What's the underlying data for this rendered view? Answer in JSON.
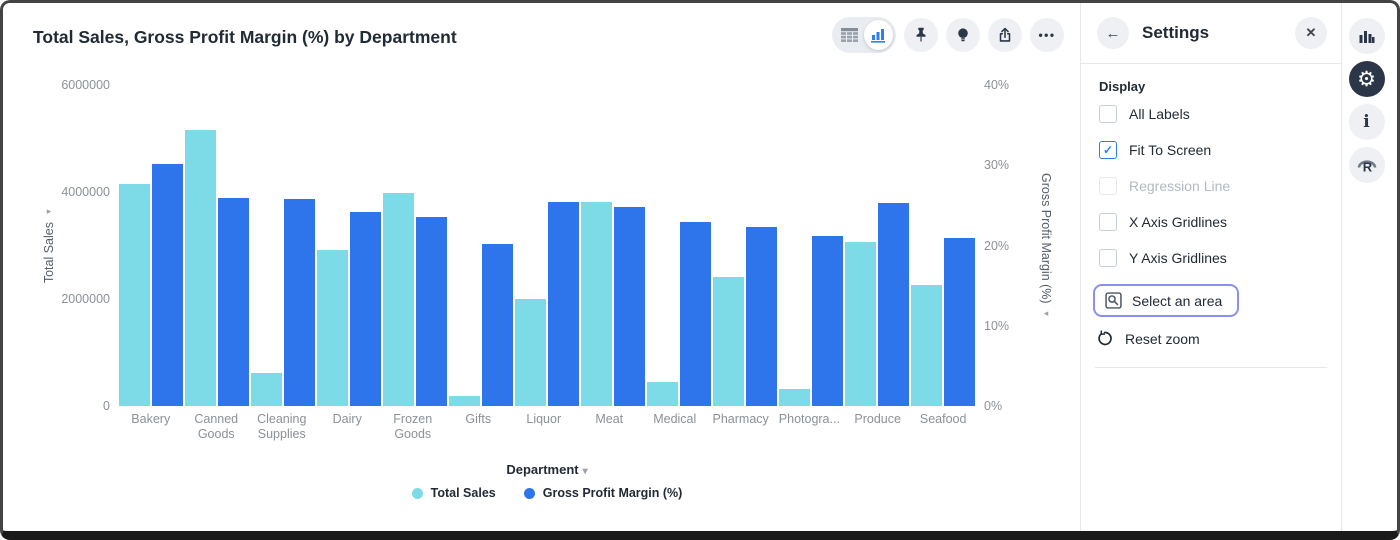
{
  "colors": {
    "accent": "#2d7ff0",
    "focus": "#8a8ff0",
    "icon_dark": "#2b3648",
    "series_cyan": "#7cdbe6",
    "series_blue": "#2e74ea"
  },
  "header": {
    "title": "Total Sales, Gross Profit Margin (%) by Department",
    "toolbar": {
      "view_toggle": [
        "table-view",
        "chart-view"
      ],
      "active_view": "chart-view",
      "buttons": [
        "pin",
        "insights-bulb",
        "export",
        "more-options"
      ]
    }
  },
  "chart_data": {
    "type": "bar",
    "dual_axis": true,
    "title": "Total Sales, Gross Profit Margin (%) by Department",
    "categories": [
      "Bakery",
      "Canned Goods",
      "Cleaning Supplies",
      "Dairy",
      "Frozen Goods",
      "Gifts",
      "Liquor",
      "Meat",
      "Medical",
      "Pharmacy",
      "Photogra...",
      "Produce",
      "Seafood"
    ],
    "series": [
      {
        "name": "Total Sales",
        "axis": "left",
        "color": "#7cdbe6",
        "values": [
          4150000,
          5160000,
          620000,
          2920000,
          3980000,
          180000,
          2000000,
          3810000,
          450000,
          2410000,
          320000,
          3070000,
          2260000
        ]
      },
      {
        "name": "Gross Profit Margin (%)",
        "axis": "right",
        "color": "#2e74ea",
        "values": [
          30.2,
          25.9,
          25.8,
          24.2,
          23.6,
          20.2,
          25.4,
          24.8,
          22.9,
          22.3,
          21.2,
          25.3,
          20.9
        ]
      }
    ],
    "y_left": {
      "title": "Total Sales",
      "max": 6000000,
      "ticks": [
        {
          "label": "0",
          "value": 0
        },
        {
          "label": "2000000",
          "value": 2000000
        },
        {
          "label": "4000000",
          "value": 4000000
        },
        {
          "label": "6000000",
          "value": 6000000
        }
      ]
    },
    "y_right": {
      "title": "Gross Profit Margin (%)",
      "max": 40,
      "ticks": [
        {
          "label": "0%",
          "value": 0
        },
        {
          "label": "10%",
          "value": 10
        },
        {
          "label": "20%",
          "value": 20
        },
        {
          "label": "30%",
          "value": 30
        },
        {
          "label": "40%",
          "value": 40
        }
      ]
    },
    "x_axis": {
      "title": "Department"
    },
    "legend_position": "bottom",
    "gridlines": false
  },
  "settings": {
    "title": "Settings",
    "section_label": "Display",
    "checkboxes": [
      {
        "label": "All Labels",
        "checked": false,
        "disabled": false
      },
      {
        "label": "Fit To Screen",
        "checked": true,
        "disabled": false
      },
      {
        "label": "Regression Line",
        "checked": false,
        "disabled": true
      },
      {
        "label": "X Axis Gridlines",
        "checked": false,
        "disabled": false
      },
      {
        "label": "Y Axis Gridlines",
        "checked": false,
        "disabled": false
      }
    ],
    "select_area_label": "Select an area",
    "reset_zoom_label": "Reset zoom"
  },
  "right_rail": {
    "icons": [
      "chart",
      "settings-gear",
      "info",
      "r-logo"
    ],
    "active": "settings-gear"
  }
}
